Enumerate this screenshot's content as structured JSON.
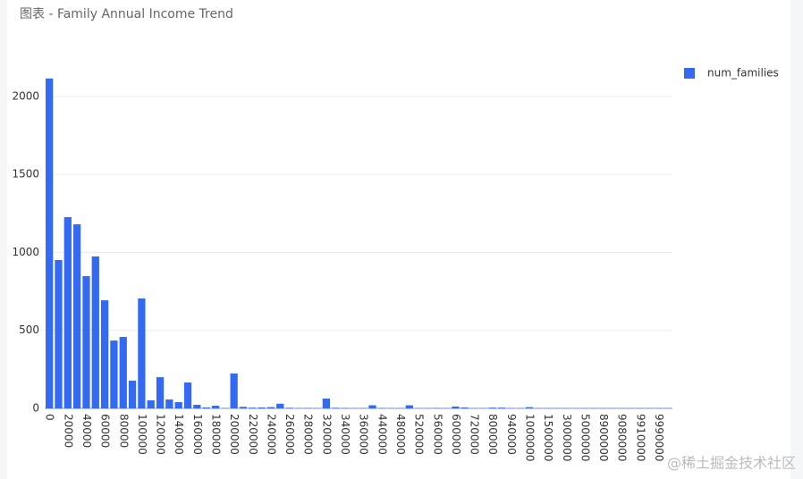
{
  "chart_data": {
    "type": "bar",
    "title": "图表 - Family Annual Income Trend",
    "watermark": "@稀土掘金技术社区",
    "categories": [
      "0",
      null,
      "20000",
      null,
      "40000",
      null,
      "60000",
      null,
      "80000",
      null,
      "100000",
      null,
      "120000",
      null,
      "140000",
      null,
      "160000",
      null,
      "180000",
      null,
      "200000",
      null,
      "220000",
      null,
      "240000",
      null,
      "260000",
      null,
      "280000",
      null,
      "320000",
      null,
      "340000",
      null,
      "360000",
      null,
      "440000",
      null,
      "480000",
      null,
      "520000",
      null,
      "560000",
      null,
      "600000",
      null,
      "720000",
      null,
      "800000",
      null,
      "940000",
      null,
      "1000000",
      null,
      "1500000",
      null,
      "3000000",
      null,
      "5000000",
      null,
      "8900000",
      null,
      "9080000",
      null,
      "9910000",
      null,
      "9990000",
      null
    ],
    "series": [
      {
        "name": "num_families",
        "color": "#3469f2",
        "values": [
          2115,
          951,
          1226,
          1180,
          848,
          974,
          693,
          435,
          458,
          178,
          705,
          52,
          200,
          57,
          40,
          166,
          23,
          6,
          17,
          2,
          224,
          10,
          5,
          6,
          8,
          30,
          4,
          2,
          3,
          2,
          63,
          4,
          3,
          2,
          2,
          20,
          3,
          2,
          2,
          20,
          2,
          2,
          3,
          2,
          12,
          6,
          2,
          2,
          5,
          5,
          2,
          2,
          8,
          2,
          2,
          2,
          2,
          2,
          2,
          2,
          2,
          2,
          2,
          2,
          2,
          2,
          2,
          2
        ]
      }
    ],
    "ylim": [
      0,
      2200
    ],
    "yticks": [
      0,
      500,
      1000,
      1500,
      2000
    ],
    "grid": true,
    "legend": "top-right"
  }
}
